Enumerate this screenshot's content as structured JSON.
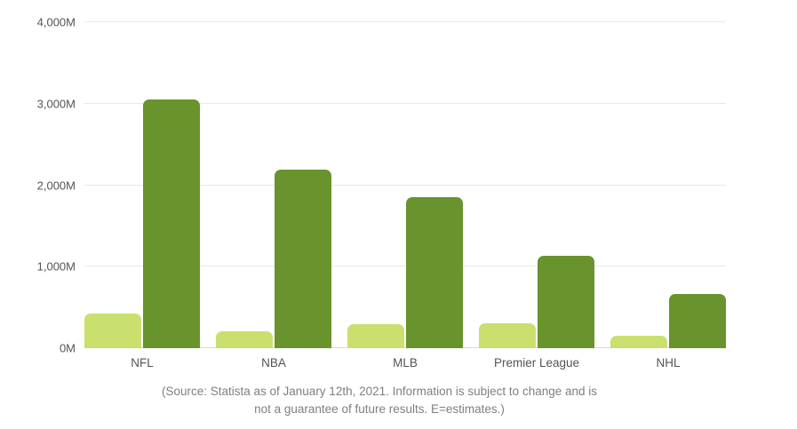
{
  "chart_data": {
    "type": "bar",
    "title": "",
    "categories": [
      "NFL",
      "NBA",
      "MLB",
      "Premier League",
      "NHL"
    ],
    "series": [
      {
        "name": "light-green-series",
        "color": "#c9e06e",
        "values": [
          430,
          210,
          290,
          300,
          150
        ]
      },
      {
        "name": "dark-green-series",
        "color": "#68932d",
        "values": [
          3050,
          2190,
          1850,
          1130,
          660
        ]
      }
    ],
    "ylim": [
      0,
      4000
    ],
    "yticks": [
      {
        "value": 0,
        "label": "0M"
      },
      {
        "value": 1000,
        "label": "1,000M"
      },
      {
        "value": 2000,
        "label": "2,000M"
      },
      {
        "value": 3000,
        "label": "3,000M"
      },
      {
        "value": 4000,
        "label": "4,000M"
      }
    ],
    "grid": true,
    "legend": "none",
    "source_lines": [
      "(Source: Statista as of January 12th, 2021. Information is subject to change and is",
      "not a guarantee of future results. E=estimates.)"
    ]
  },
  "colors": {
    "background": "#ffffff",
    "gridline": "#e8e8e8",
    "axis_line": "#d9d9d9",
    "tick_label": "#515459",
    "caption": "#7f7f7f"
  }
}
